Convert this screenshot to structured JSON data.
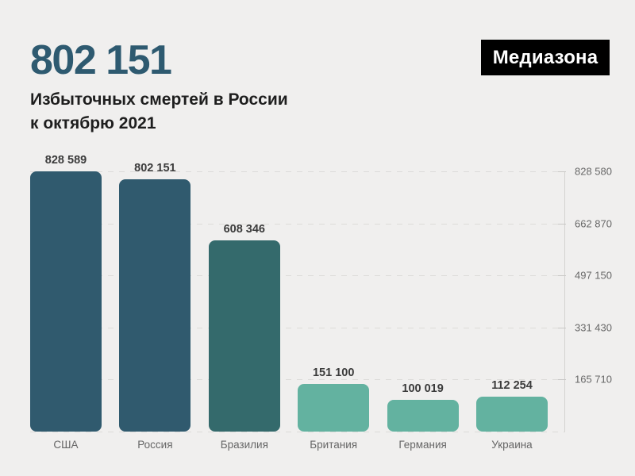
{
  "page": {
    "background_color": "#f0efee"
  },
  "header": {
    "headline_number": "802 151",
    "headline_color": "#2e5a70",
    "subtitle_line1": "Избыточных смертей в России",
    "subtitle_line2": "к октябрю 2021",
    "logo_text": "Медиазона",
    "logo_bg_color": "#000000",
    "logo_text_color": "#ffffff"
  },
  "chart_data": {
    "type": "bar",
    "title": "Избыточных смертей в России к октябрю 2021",
    "categories": [
      "США",
      "Россия",
      "Бразилия",
      "Британия",
      "Германия",
      "Украина"
    ],
    "values": [
      828589,
      802151,
      608346,
      151100,
      100019,
      112254
    ],
    "value_labels": [
      "828 589",
      "802 151",
      "608 346",
      "151 100",
      "100 019",
      "112 254"
    ],
    "bar_colors": [
      "#305a6e",
      "#305a6e",
      "#346a6c",
      "#63b2a0",
      "#63b2a0",
      "#63b2a0"
    ],
    "xlabel": "",
    "ylabel": "",
    "ylim": [
      0,
      828580
    ],
    "grid": "dashed horizontal",
    "legend": "none",
    "yaxis": {
      "side": "right",
      "max": 828580,
      "ticks": [
        165710,
        331430,
        497150,
        662870,
        828580
      ],
      "tick_labels": [
        "165 710",
        "331 430",
        "497 150",
        "662 870",
        "828 580"
      ]
    }
  }
}
